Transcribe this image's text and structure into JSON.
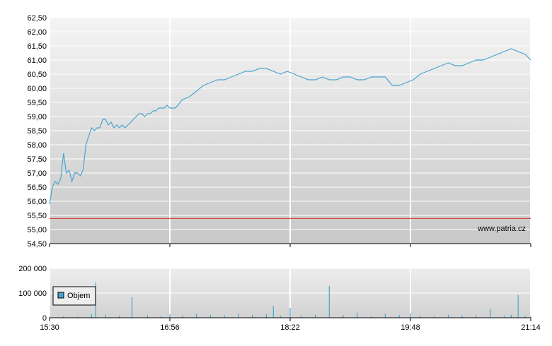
{
  "watermark": "www.patria.cz",
  "colors": {
    "price_line": "#4aa3cf",
    "reference_line": "#d9302c",
    "volume_bar": "#4aa3cf",
    "grid": "#ffffff",
    "plot_bg_top": "#f2f2f2",
    "plot_bg_bottom": "#c9c9c9"
  },
  "chart_data": [
    {
      "type": "line",
      "title": "",
      "xlabel": "",
      "ylabel": "",
      "ylim": [
        54.5,
        62.5
      ],
      "y_ticks": [
        "62,50",
        "62,00",
        "61,50",
        "61,00",
        "60,50",
        "60,00",
        "59,50",
        "59,00",
        "58,50",
        "58,00",
        "57,50",
        "57,00",
        "56,50",
        "56,00",
        "55,50",
        "55,00",
        "54,50"
      ],
      "y_tick_values": [
        62.5,
        62.0,
        61.5,
        61.0,
        60.5,
        60.0,
        59.5,
        59.0,
        58.5,
        58.0,
        57.5,
        57.0,
        56.5,
        56.0,
        55.5,
        55.0,
        54.5
      ],
      "x_ticks": [
        "15:30",
        "16:56",
        "18:22",
        "19:48",
        "21:14"
      ],
      "reference_value": 55.39,
      "grid": true,
      "series": [
        {
          "x": [
            "15:30",
            "15:32",
            "15:34",
            "15:36",
            "15:38",
            "15:40",
            "15:42",
            "15:44",
            "15:46",
            "15:48",
            "15:50",
            "15:52",
            "15:54",
            "15:56",
            "15:58",
            "16:00",
            "16:02",
            "16:04",
            "16:06",
            "16:08",
            "16:10",
            "16:12",
            "16:14",
            "16:16",
            "16:18",
            "16:20",
            "16:22",
            "16:24",
            "16:26",
            "16:28",
            "16:30",
            "16:32",
            "16:34",
            "16:36",
            "16:38",
            "16:40",
            "16:42",
            "16:44",
            "16:46",
            "16:48",
            "16:50",
            "16:52",
            "16:54",
            "16:56",
            "17:00",
            "17:05",
            "17:10",
            "17:15",
            "17:20",
            "17:25",
            "17:30",
            "17:35",
            "17:40",
            "17:45",
            "17:50",
            "17:55",
            "18:00",
            "18:05",
            "18:10",
            "18:15",
            "18:20",
            "18:25",
            "18:30",
            "18:35",
            "18:40",
            "18:45",
            "18:50",
            "18:55",
            "19:00",
            "19:05",
            "19:10",
            "19:15",
            "19:20",
            "19:25",
            "19:30",
            "19:35",
            "19:40",
            "19:45",
            "19:50",
            "19:55",
            "20:00",
            "20:05",
            "20:10",
            "20:15",
            "20:20",
            "20:25",
            "20:30",
            "20:35",
            "20:40",
            "20:45",
            "20:50",
            "20:55",
            "21:00",
            "21:05",
            "21:10",
            "21:14"
          ],
          "values": [
            55.9,
            56.5,
            56.7,
            56.6,
            56.8,
            57.7,
            57.0,
            57.1,
            56.7,
            57.0,
            57.0,
            56.9,
            57.1,
            58.0,
            58.3,
            58.6,
            58.5,
            58.6,
            58.6,
            58.9,
            58.9,
            58.7,
            58.8,
            58.6,
            58.7,
            58.6,
            58.7,
            58.6,
            58.7,
            58.8,
            58.9,
            59.0,
            59.1,
            59.1,
            59.0,
            59.1,
            59.1,
            59.2,
            59.2,
            59.3,
            59.3,
            59.3,
            59.4,
            59.3,
            59.3,
            59.6,
            59.7,
            59.9,
            60.1,
            60.2,
            60.3,
            60.3,
            60.4,
            60.5,
            60.6,
            60.6,
            60.7,
            60.7,
            60.6,
            60.5,
            60.6,
            60.5,
            60.4,
            60.3,
            60.3,
            60.4,
            60.3,
            60.3,
            60.4,
            60.4,
            60.3,
            60.3,
            60.4,
            60.4,
            60.4,
            60.1,
            60.1,
            60.2,
            60.3,
            60.5,
            60.6,
            60.7,
            60.8,
            60.9,
            60.8,
            60.8,
            60.9,
            61.0,
            61.0,
            61.1,
            61.2,
            61.3,
            61.4,
            61.3,
            61.2,
            61.0
          ]
        }
      ]
    },
    {
      "type": "bar",
      "title": "",
      "xlabel": "",
      "ylabel": "",
      "ylim": [
        0,
        200000
      ],
      "y_ticks": [
        "200 000",
        "100 000",
        "0"
      ],
      "y_tick_values": [
        200000,
        100000,
        0
      ],
      "x_ticks": [
        "15:30",
        "16:56",
        "18:22",
        "19:48",
        "21:14"
      ],
      "grid": true,
      "series": [
        {
          "name": "Objem",
          "x": [
            "15:30",
            "15:40",
            "15:50",
            "16:00",
            "16:03",
            "16:10",
            "16:20",
            "16:29",
            "16:40",
            "16:50",
            "16:56",
            "17:05",
            "17:15",
            "17:25",
            "17:35",
            "17:45",
            "17:55",
            "18:05",
            "18:10",
            "18:15",
            "18:22",
            "18:30",
            "18:40",
            "18:50",
            "19:00",
            "19:10",
            "19:20",
            "19:30",
            "19:40",
            "19:48",
            "19:55",
            "20:05",
            "20:15",
            "20:25",
            "20:35",
            "20:45",
            "20:55",
            "21:00",
            "21:05",
            "21:10",
            "21:14"
          ],
          "values": [
            5000,
            6000,
            4000,
            15000,
            143000,
            12000,
            8000,
            83000,
            10000,
            6000,
            14000,
            9000,
            16000,
            12000,
            10000,
            18000,
            11000,
            15000,
            47000,
            9000,
            40000,
            8000,
            12000,
            129000,
            10000,
            21000,
            7000,
            17000,
            11000,
            18000,
            9000,
            6000,
            12000,
            8000,
            10000,
            37000,
            9000,
            12000,
            92000,
            8000,
            6000
          ]
        }
      ]
    }
  ]
}
